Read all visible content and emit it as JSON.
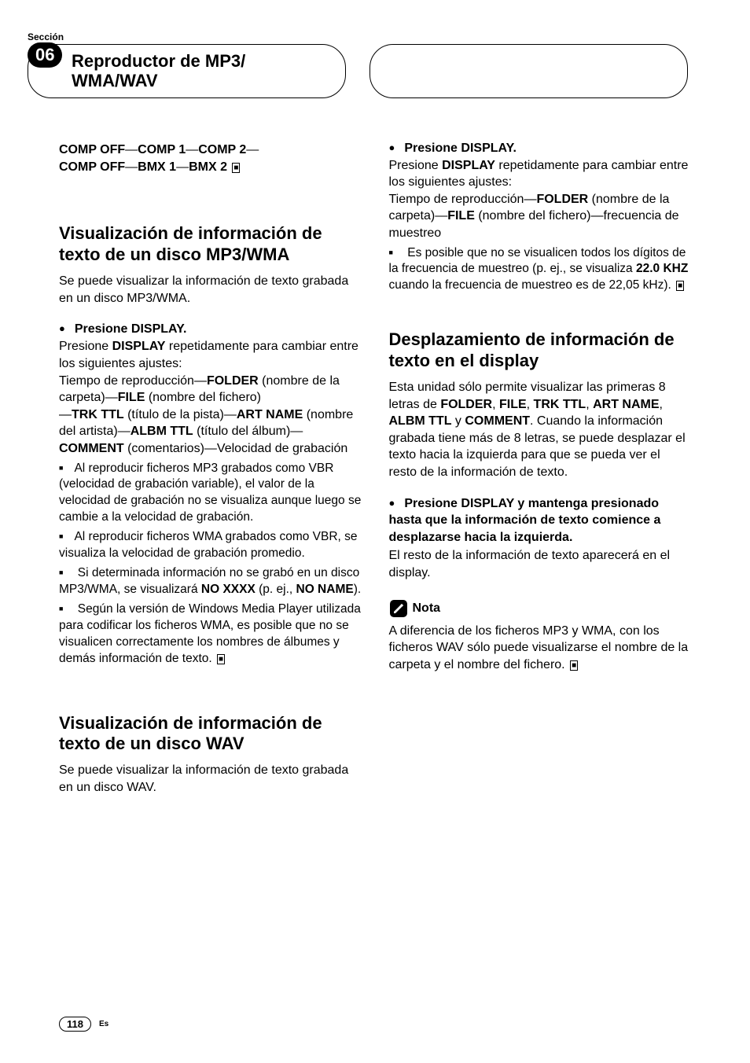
{
  "header": {
    "section_label": "Sección",
    "section_num": "06",
    "title": "Reproductor de MP3/\nWMA/WAV"
  },
  "left": {
    "comp_prefix1": "COMP OFF",
    "comp_1": "COMP 1",
    "comp_2": "COMP 2",
    "comp_prefix2": "COMP OFF",
    "bmx_1": "BMX 1",
    "bmx_2": "BMX 2",
    "h2_mp3": "Visualización de información de texto de un disco MP3/WMA",
    "intro_mp3": "Se puede visualizar la información de texto grabada en un disco MP3/WMA.",
    "step1": "Presione DISPLAY.",
    "p1a": "Presione ",
    "p1b": "DISPLAY",
    "p1c": " repetidamente para cambiar entre los siguientes ajustes:",
    "p2a": "Tiempo de reproducción—",
    "folder": "FOLDER",
    "p2b": " (nombre de la carpeta)—",
    "file": "FILE",
    "p2c": " (nombre del fichero)",
    "p3a": "—",
    "trkttl": "TRK TTL",
    "p3b": " (título de la pista)—",
    "artname": "ART NAME",
    "p3c": " (nombre del artista)—",
    "albmttl": "ALBM TTL",
    "p3d": " (título del álbum)—",
    "comment": "COMMENT",
    "p3e": " (comentarios)—Velocidad de grabación",
    "n1": "Al reproducir ficheros MP3 grabados como VBR (velocidad de grabación variable), el valor de la velocidad de grabación no se visualiza aunque luego se cambie a la velocidad de grabación.",
    "n2": "Al reproducir ficheros WMA grabados como VBR, se visualiza la velocidad de grabación promedio.",
    "n3a": "Si determinada información no se grabó en un disco MP3/WMA, se visualizará ",
    "noxxxx": "NO XXXX",
    "n3b": " (p. ej., ",
    "noname": "NO NAME",
    "n3c": ").",
    "n4": "Según la versión de Windows Media Player utilizada para codificar los ficheros WMA, es posible que no se visualicen correctamente los nombres de álbumes y demás información de texto.",
    "h2_wav": "Visualización de información de texto de un disco WAV",
    "intro_wav": "Se puede visualizar la información de texto grabada en un disco WAV."
  },
  "right": {
    "step1": "Presione DISPLAY.",
    "p1a": "Presione ",
    "p1b": "DISPLAY",
    "p1c": " repetidamente para cambiar entre los siguientes ajustes:",
    "p2a": "Tiempo de reproducción—",
    "folder": "FOLDER",
    "p2b": " (nombre de la carpeta)—",
    "file": "FILE",
    "p2c": " (nombre del fichero)—frecuencia de muestreo",
    "n1a": "Es posible que no se visualicen todos los dígitos de la frecuencia de muestreo (p. ej., se visualiza ",
    "khz": "22.0 KHZ",
    "n1b": " cuando la frecuencia de muestreo es de 22,05 kHz).",
    "h2_scroll": "Desplazamiento de información de texto en el display",
    "scroll_intro_a": "Esta unidad sólo permite visualizar las primeras 8 letras de ",
    "sf_folder": "FOLDER",
    "comma": ", ",
    "sf_file": "FILE",
    "sf_trk": "TRK TTL",
    "sf_art": "ART NAME",
    "sf_albm": "ALBM TTL",
    "and": " y ",
    "sf_comment": "COMMENT",
    "scroll_intro_b": ". Cuando la información grabada tiene más de 8 letras, se puede desplazar el texto hacia la izquierda para que se pueda ver el resto de la información de texto.",
    "scroll_step": "Presione DISPLAY y mantenga presionado hasta que la información de texto comience a desplazarse hacia la izquierda.",
    "scroll_after": "El resto de la información de texto aparecerá en el display.",
    "note_label": "Nota",
    "note_text": "A diferencia de los ficheros MP3 y WMA, con los ficheros WAV sólo puede visualizarse el nombre de la carpeta y el nombre del fichero."
  },
  "footer": {
    "page": "118",
    "lang": "Es"
  },
  "colors": {
    "text": "#000000",
    "bg": "#ffffff"
  }
}
